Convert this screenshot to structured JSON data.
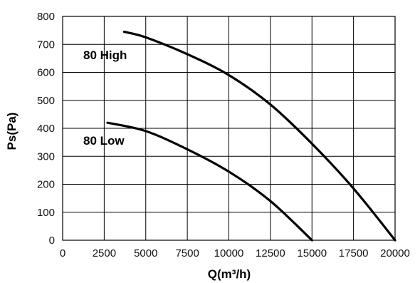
{
  "chart_data": {
    "type": "line",
    "title": "",
    "xlabel": "Q(m³/h)",
    "ylabel": "Ps(Pa)",
    "xlim": [
      0,
      20000
    ],
    "ylim": [
      0,
      800
    ],
    "grid": true,
    "x_ticks": [
      0,
      2500,
      5000,
      7500,
      10000,
      12500,
      15000,
      17500,
      20000
    ],
    "y_ticks": [
      0,
      100,
      200,
      300,
      400,
      500,
      600,
      700,
      800
    ],
    "series": [
      {
        "name": "80 High",
        "label": "80 High",
        "points": [
          [
            3700,
            745
          ],
          [
            5000,
            725
          ],
          [
            7500,
            665
          ],
          [
            10000,
            590
          ],
          [
            12500,
            485
          ],
          [
            15000,
            345
          ],
          [
            17500,
            185
          ],
          [
            20000,
            0
          ]
        ]
      },
      {
        "name": "80 Low",
        "label": "80 Low",
        "points": [
          [
            2700,
            420
          ],
          [
            5000,
            390
          ],
          [
            7500,
            325
          ],
          [
            10000,
            245
          ],
          [
            12500,
            140
          ],
          [
            15000,
            0
          ]
        ]
      }
    ]
  }
}
